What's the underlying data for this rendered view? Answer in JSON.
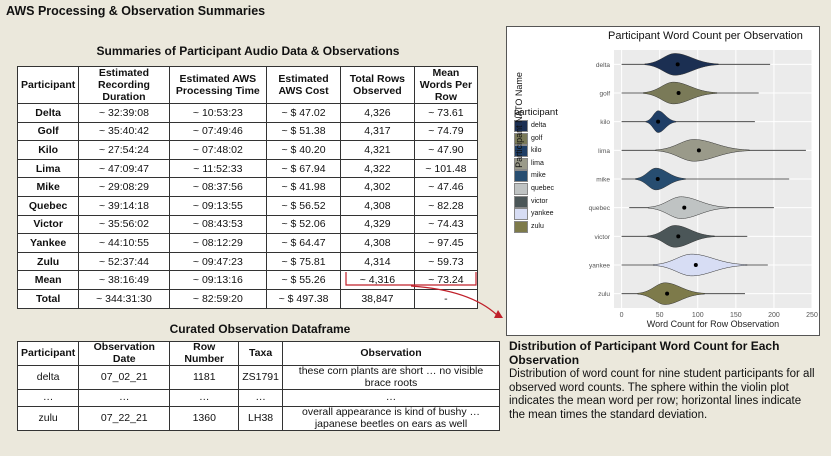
{
  "page_title": "AWS Processing & Observation Summaries",
  "summary_table": {
    "title": "Summaries of Participant Audio Data & Observations",
    "headers": [
      "Participant",
      "Estimated Recording Duration",
      "Estimated AWS Processing Time",
      "Estimated AWS Cost",
      "Total Rows Observed",
      "Mean Words Per Row"
    ],
    "rows": [
      [
        "Delta",
        "~ 32:39:08",
        "~ 10:53:23",
        "~ $ 47.02",
        "4,326",
        "~ 73.61"
      ],
      [
        "Golf",
        "~ 35:40:42",
        "~ 07:49:46",
        "~ $ 51.38",
        "4,317",
        "~ 74.79"
      ],
      [
        "Kilo",
        "~ 27:54:24",
        "~ 07:48:02",
        "~ $ 40.20",
        "4,321",
        "~ 47.90"
      ],
      [
        "Lima",
        "~ 47:09:47",
        "~ 11:52:33",
        "~ $ 67.94",
        "4,322",
        "~ 101.48"
      ],
      [
        "Mike",
        "~ 29:08:29",
        "~ 08:37:56",
        "~ $ 41.98",
        "4,302",
        "~ 47.46"
      ],
      [
        "Quebec",
        "~ 39:14:18",
        "~ 09:13:55",
        "~ $ 56.52",
        "4,308",
        "~ 82.28"
      ],
      [
        "Victor",
        "~ 35:56:02",
        "~ 08:43:53",
        "~ $ 52.06",
        "4,329",
        "~ 74.43"
      ],
      [
        "Yankee",
        "~ 44:10:55",
        "~ 08:12:29",
        "~ $ 64.47",
        "4,308",
        "~ 97.45"
      ],
      [
        "Zulu",
        "~ 52:37:44",
        "~ 09:47:23",
        "~ $ 75.81",
        "4,314",
        "~ 59.73"
      ],
      [
        "Mean",
        "~ 38:16:49",
        "~ 09:13:16",
        "~ $ 55.26",
        "~ 4,316",
        "~ 73.24"
      ],
      [
        "Total",
        "~ 344:31:30",
        "~ 82:59:20",
        "~ $ 497.38",
        "38,847",
        "-"
      ]
    ]
  },
  "curated_table": {
    "title": "Curated Observation Dataframe",
    "headers": [
      "Participant",
      "Observation Date",
      "Row Number",
      "Taxa",
      "Observation"
    ],
    "rows": [
      [
        "delta",
        "07_02_21",
        "1181",
        "ZS1791",
        "these corn plants are short … no visible brace roots"
      ],
      [
        "…",
        "…",
        "…",
        "…",
        "…"
      ],
      [
        "zulu",
        "07_22_21",
        "1360",
        "LH38",
        "overall appearance is kind of bushy … japanese beetles on ears as well"
      ]
    ]
  },
  "chart_data": {
    "type": "violin",
    "title": "Participant Word Count per Observation",
    "xlabel": "Word Count for Row Observation",
    "ylabel": "Participant NATO Name",
    "xlim": [
      -10,
      250
    ],
    "xticks": [
      0,
      50,
      100,
      150,
      200,
      250
    ],
    "legend_title": "participant",
    "legend_position": "left",
    "grid": true,
    "categories": [
      "delta",
      "golf",
      "kilo",
      "lima",
      "mike",
      "quebec",
      "victor",
      "yankee",
      "zulu"
    ],
    "series": [
      {
        "name": "delta",
        "color": "#1b2f52",
        "mean": 73.61,
        "sd_line": [
          0,
          195
        ],
        "peak": 70,
        "spread": 22
      },
      {
        "name": "golf",
        "color": "#7a7a58",
        "mean": 74.79,
        "sd_line": [
          0,
          180
        ],
        "peak": 68,
        "spread": 22
      },
      {
        "name": "kilo",
        "color": "#1f3e66",
        "mean": 47.9,
        "sd_line": [
          0,
          175
        ],
        "peak": 48,
        "spread": 9
      },
      {
        "name": "lima",
        "color": "#9a9a8a",
        "mean": 101.48,
        "sd_line": [
          0,
          242
        ],
        "peak": 95,
        "spread": 28
      },
      {
        "name": "mike",
        "color": "#274d70",
        "mean": 47.46,
        "sd_line": [
          0,
          220
        ],
        "peak": 45,
        "spread": 15
      },
      {
        "name": "quebec",
        "color": "#bfc3c3",
        "mean": 82.28,
        "sd_line": [
          10,
          200
        ],
        "peak": 78,
        "spread": 24
      },
      {
        "name": "victor",
        "color": "#4b5658",
        "mean": 74.43,
        "sd_line": [
          0,
          165
        ],
        "peak": 70,
        "spread": 20
      },
      {
        "name": "yankee",
        "color": "#d7ddf4",
        "mean": 97.45,
        "sd_line": [
          0,
          192
        ],
        "peak": 92,
        "spread": 28
      },
      {
        "name": "zulu",
        "color": "#7d7a4a",
        "mean": 59.73,
        "sd_line": [
          0,
          162
        ],
        "peak": 57,
        "spread": 20
      }
    ]
  },
  "caption": {
    "title": "Distribution of Participant Word Count for Each Observation",
    "body": "Distribution of word count for nine student participants for all observed word counts. The sphere within the violin plot indicates the mean word per row; horizontal lines indicate the mean times the standard deviation."
  },
  "colors": {
    "background": "#ebe8dc",
    "arrow": "#c0202a"
  }
}
